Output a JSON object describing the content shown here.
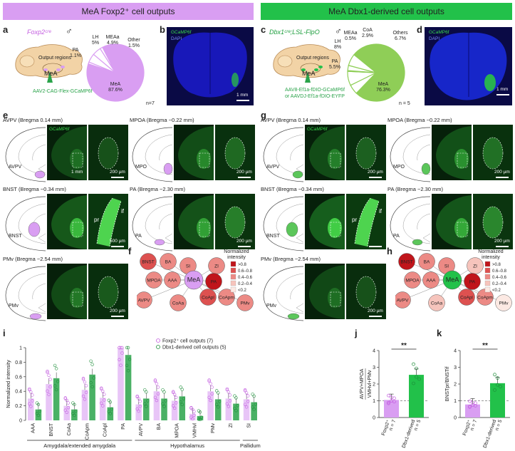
{
  "headers": {
    "left": "MeA Foxp2⁺ cell outputs",
    "right": "MeA Dbx1-derived cell outputs",
    "left_color": "#d99ef2",
    "right_color": "#22c14a"
  },
  "panel_letters": {
    "a": "a",
    "b": "b",
    "c": "c",
    "d": "d",
    "e": "e",
    "f": "f",
    "g": "g",
    "h": "h",
    "i": "i",
    "j": "j",
    "k": "k"
  },
  "panel_a": {
    "genotype": "Foxp2ᶜʳᵉ",
    "sex_symbol": "♂",
    "output_regions_label": "Output regions",
    "mea_label": "MeA",
    "virus": "AAV2-CAG-Flex-GCaMP6f",
    "n": "n=7",
    "pie": [
      {
        "label": "MeA",
        "value": 87.6,
        "text": "87.6%"
      },
      {
        "label": "PA",
        "value": 1.1,
        "text": "1.1%"
      },
      {
        "label": "LH",
        "value": 5.0,
        "text": "5%"
      },
      {
        "label": "MEAa",
        "value": 4.9,
        "text": "4.9%"
      },
      {
        "label": "Other",
        "value": 1.5,
        "text": "1.5%"
      }
    ]
  },
  "panel_b": {
    "legend1": "GCaMP6f",
    "legend2": "DAPI",
    "scale": "1 mm"
  },
  "panel_c": {
    "genotype": "Dbx1ᶜʳᵉ;LSL-FlpO",
    "sex_symbol": "♂",
    "output_regions_label": "Output regions",
    "mea_label": "MeA",
    "virus1": "AAV8-Ef1a-fDIO-GCaMP6f",
    "virus2": "or AAVDJ-Ef1a-fDIO-EYFP",
    "n": "n = 5",
    "pie": [
      {
        "label": "MeA",
        "value": 76.3,
        "text": "76.3%"
      },
      {
        "label": "PA",
        "value": 5.5,
        "text": "5.5%"
      },
      {
        "label": "LH",
        "value": 8.0,
        "text": "8%"
      },
      {
        "label": "MEAa",
        "value": 0.5,
        "text": "0.5%"
      },
      {
        "label": "CoA",
        "value": 2.9,
        "text": "2.9%"
      },
      {
        "label": "Others",
        "value": 6.7,
        "text": "6.7%"
      }
    ]
  },
  "panel_d": {
    "legend1": "GCaMP6f",
    "legend2": "DAPI",
    "scale": "1 mm"
  },
  "panel_e": {
    "titles": [
      "AVPV (Bregma 0.14 mm)",
      "MPOA (Bregma −0.22 mm)",
      "BNST (Bregma −0.34 mm)",
      "PA (Bregma −2.30 mm)",
      "PMv (Bregma −2.54 mm)"
    ],
    "region_labels": [
      "AVPV",
      "MPO",
      "BNST",
      "PA",
      "PMv"
    ],
    "gcamp": "GCaMP6f",
    "scale_1mm": "1 mm",
    "scale_200": "200 µm",
    "scale_500": "500 µm",
    "pr": "pr",
    "if": "if"
  },
  "panel_g": {
    "titles": [
      "AVPV (Bregma 0.14 mm)",
      "MPOA (Bregma −0.22 mm)",
      "BNST (Bregma −0.34 mm)",
      "PA (Bregma −2.30 mm)",
      "PMv (Bregma −2.54 mm)"
    ],
    "region_labels": [
      "AVPV",
      "MPO",
      "BNST",
      "PA",
      "PMv"
    ],
    "gcamp": "GCaMP6f",
    "scale_200": "200 µm",
    "pr": "pr",
    "if": "if"
  },
  "network_legend": {
    "title1": "Normalized",
    "title2": "intensity",
    "levels": [
      ">0.8",
      "0.6–0.8",
      "0.4–0.6",
      "0.2–0.4",
      "<0.2"
    ],
    "colors": [
      "#c0151b",
      "#dd5150",
      "#ec8a85",
      "#f6c4bc",
      "#fce9e3"
    ]
  },
  "panel_f": {
    "nodes": [
      {
        "id": "BNST",
        "level": 1
      },
      {
        "id": "BA",
        "level": 2
      },
      {
        "id": "SI",
        "level": 2
      },
      {
        "id": "ZI",
        "level": 2
      },
      {
        "id": "MPOA",
        "level": 2
      },
      {
        "id": "AAA",
        "level": 2
      },
      {
        "id": "MeA",
        "level": -1
      },
      {
        "id": "PA",
        "level": 0
      },
      {
        "id": "AVPV",
        "level": 2
      },
      {
        "id": "CoApl",
        "level": 1
      },
      {
        "id": "CoApm",
        "level": 2
      },
      {
        "id": "CoAa",
        "level": 2
      },
      {
        "id": "PMv",
        "level": 2
      }
    ],
    "center_color": "#d99ef2"
  },
  "panel_h": {
    "nodes": [
      {
        "id": "BNST",
        "level": 0
      },
      {
        "id": "BA",
        "level": 2
      },
      {
        "id": "SI",
        "level": 2
      },
      {
        "id": "ZI",
        "level": 3
      },
      {
        "id": "MPOA",
        "level": 2
      },
      {
        "id": "AAA",
        "level": 2
      },
      {
        "id": "MeA",
        "level": -1
      },
      {
        "id": "PA",
        "level": 0
      },
      {
        "id": "AVPV",
        "level": 2
      },
      {
        "id": "CoApl",
        "level": 1
      },
      {
        "id": "CoApm",
        "level": 2
      },
      {
        "id": "CoAa",
        "level": 3
      },
      {
        "id": "PMv",
        "level": 4
      }
    ],
    "center_color": "#22c14a"
  },
  "chart_data": [
    {
      "type": "bar",
      "panel": "i",
      "ylabel": "Normalized intensity",
      "ylim": [
        0,
        1.0
      ],
      "yticks": [
        0,
        0.2,
        0.4,
        0.6,
        0.8,
        1.0
      ],
      "categories": [
        "AAA",
        "BNST",
        "CoAa",
        "CoApm",
        "CoApl",
        "PA",
        "AVPV",
        "BA",
        "MPOA",
        "VMHvl",
        "PMv",
        "ZI",
        "SI"
      ],
      "series": [
        {
          "name": "Foxp2⁺ cell outputs (7)",
          "color": "#d99ef2",
          "values": [
            0.3,
            0.5,
            0.2,
            0.42,
            0.31,
            0.99,
            0.22,
            0.4,
            0.27,
            0.09,
            0.4,
            0.3,
            0.29
          ]
        },
        {
          "name": "Dbx1-derived cell outputs (5)",
          "color": "#2aa34a",
          "values": [
            0.15,
            0.58,
            0.15,
            0.63,
            0.18,
            0.9,
            0.3,
            0.3,
            0.33,
            0.06,
            0.29,
            0.23,
            0.25
          ]
        }
      ],
      "groups": [
        {
          "label": "Amygdala/extended amygdala",
          "from": 0,
          "to": 5
        },
        {
          "label": "Hypothalamus",
          "from": 6,
          "to": 11
        },
        {
          "label": "Pallidum",
          "from": 12,
          "to": 12
        }
      ]
    },
    {
      "type": "bar",
      "panel": "j",
      "ylabel_num": "AVPV+MPOA",
      "ylabel_den": "VMHvl+PMv",
      "ylim": [
        0,
        4
      ],
      "yticks": [
        0,
        1,
        2,
        3,
        4
      ],
      "reference_line": 1,
      "categories": [
        "Foxp2⁺",
        "Dbx1-derived"
      ],
      "n_labels": [
        "n = 7",
        "n = 5"
      ],
      "values": [
        1.05,
        2.55
      ],
      "colors": [
        "#d99ef2",
        "#22c14a"
      ],
      "significance": "**"
    },
    {
      "type": "bar",
      "panel": "k",
      "ylabel": "BNSTpr/BNSTif",
      "ylim": [
        0,
        4
      ],
      "yticks": [
        0,
        1,
        2,
        3,
        4
      ],
      "reference_line": 1,
      "categories": [
        "Foxp2⁺",
        "Dbx1-derived"
      ],
      "n_labels": [
        "n = 7",
        "n = 5"
      ],
      "values": [
        0.78,
        2.05
      ],
      "colors": [
        "#d99ef2",
        "#22c14a"
      ],
      "significance": "**"
    }
  ]
}
